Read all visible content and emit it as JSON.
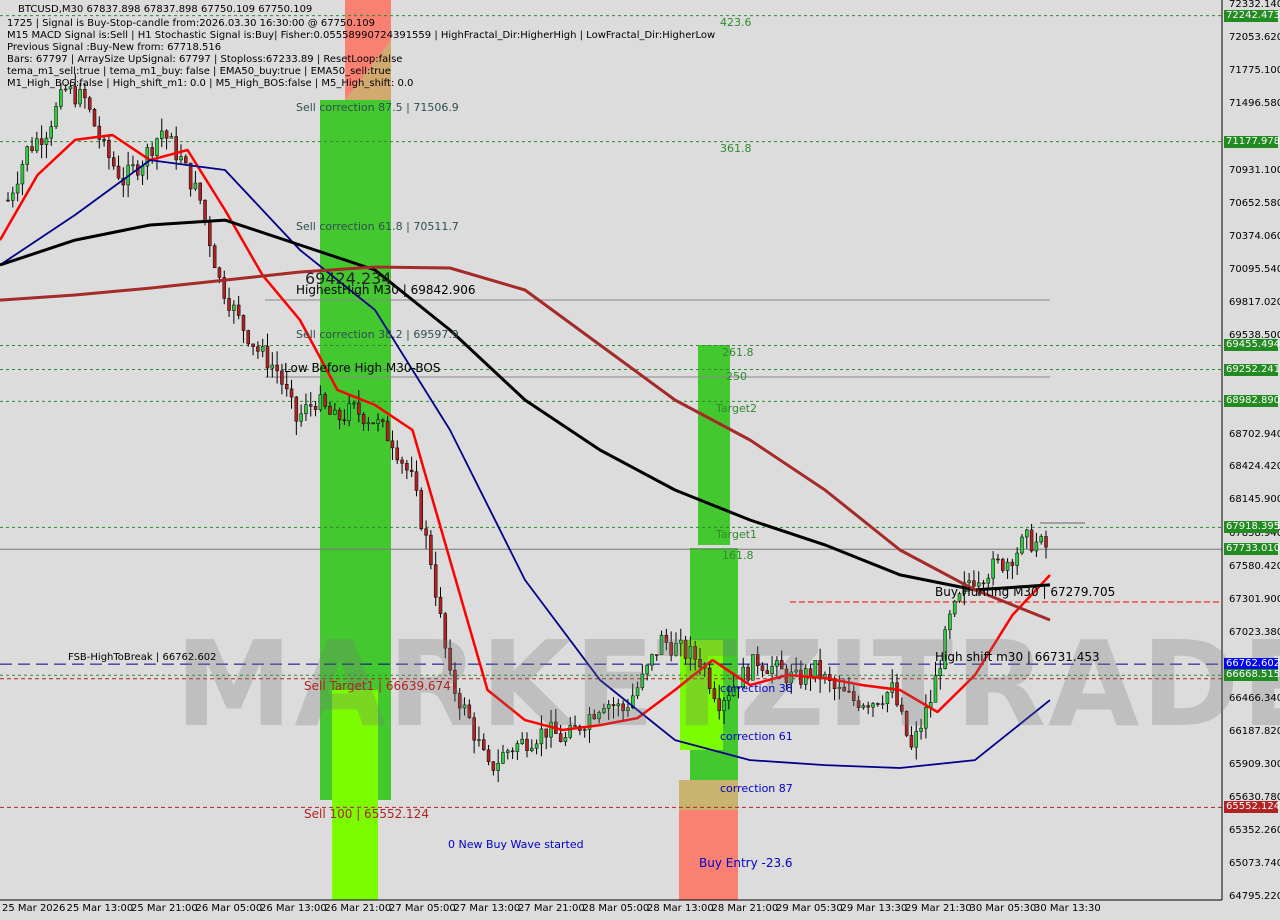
{
  "header": {
    "symbol_line": "BTCUSD,M30  67837.898 67837.898 67750.109 67750.109",
    "info_lines": [
      "1725 | Signal is Buy-Stop-candle from:2026.03.30 16:30:00 @ 67750.109",
      "M15 MACD Signal is:Sell | H1 Stochastic Signal is:Buy| Fisher:0.05558990724391559 | HighFractal_Dir:HigherHigh | LowFractal_Dir:HigherLow",
      "Previous Signal :Buy-New from: 67718.516",
      "Bars: 67797 | ArraySize UpSignal: 67797 | Stoploss:67233.89 | ResetLoop:false",
      "tema_m1_sell:true | tema_m1_buy: false | EMA50_buy:true | EMA50_sell:true",
      "M1_High_BOS:false | High_shift_m1: 0.0 | M5_High_BOS:false | M5_High_shift: 0.0"
    ]
  },
  "watermark": "MARKETZITRADE",
  "labels": {
    "l423": "423.6",
    "l361": "361.8",
    "sell875": "Sell correction 87.5 | 71506.9",
    "sell618": "Sell correction 61.8 | 70511.7",
    "price694": "69424.234",
    "highest": "HighestHigh   M30 | 69842.906",
    "sell382": "Sell correction 38.2 | 69597.9",
    "lowbefore": "Low Before High   M30-BOS",
    "l2618": "261.8",
    "l250": "250",
    "target2": "Target2",
    "target1": "Target1",
    "l1618": "161.8",
    "buyhunt": "Buy Hunting M30 | 67279.705",
    "fsb": "FSB-HighToBreak | 66762.602",
    "highshift": "High shift m30 | 66731.453",
    "selltarget1": "Sell Target1 | 66639.674",
    "corr38": "correction 38",
    "corr61": "correction 61",
    "corr87": "correction 87",
    "sell100": "Sell 100 | 65552.124",
    "newbuy": "0 New Buy Wave started",
    "buyentry": "Buy Entry -23.6"
  },
  "colors": {
    "bg": "#dcdcdc",
    "bull": "#2ecc40",
    "bear": "#b22222",
    "ema_fast": "#ff0000",
    "ema_blue": "#00008b",
    "ema_black": "#000000",
    "ema_brown": "#a52a2a",
    "tag_green": "#228b22",
    "tag_red": "#b22222",
    "tag_blue": "#0000ff"
  },
  "chart_data": {
    "type": "candlestick",
    "symbol": "BTCUSD",
    "timeframe": "M30",
    "ylim": [
      64795.22,
      72332.14
    ],
    "y_ticks": [
      "72332.140",
      "72053.620",
      "71775.100",
      "71496.580",
      "70931.100",
      "70652.580",
      "70374.060",
      "70095.540",
      "69817.020",
      "69538.500",
      "68702.940",
      "68424.420",
      "68145.900",
      "67858.940",
      "67580.420",
      "67301.900",
      "67023.380",
      "66466.340",
      "66187.820",
      "65909.300",
      "65630.780",
      "65352.260",
      "65073.740",
      "64795.220"
    ],
    "price_tags": [
      {
        "value": "72242.473",
        "color": "green"
      },
      {
        "value": "71177.978",
        "color": "green"
      },
      {
        "value": "69455.494",
        "color": "green"
      },
      {
        "value": "69252.241",
        "color": "green"
      },
      {
        "value": "68982.890",
        "color": "green"
      },
      {
        "value": "67918.395",
        "color": "green"
      },
      {
        "value": "67733.010",
        "color": "green"
      },
      {
        "value": "66762.602",
        "color": "blue"
      },
      {
        "value": "66668.515",
        "color": "green"
      },
      {
        "value": "65552.124",
        "color": "red"
      }
    ],
    "x_ticks": [
      "25 Mar 2026",
      "25 Mar 13:00",
      "25 Mar 21:00",
      "26 Mar 05:00",
      "26 Mar 13:00",
      "26 Mar 21:00",
      "27 Mar 05:00",
      "27 Mar 13:00",
      "27 Mar 21:00",
      "28 Mar 05:00",
      "28 Mar 13:00",
      "28 Mar 21:00",
      "29 Mar 05:30",
      "29 Mar 13:30",
      "29 Mar 21:30",
      "30 Mar 05:30",
      "30 Mar 13:30"
    ],
    "closes": [
      70684,
      71107,
      71276,
      71614,
      71529,
      71107,
      70853,
      71022,
      71276,
      71022,
      70684,
      70008,
      69670,
      69417,
      69248,
      68826,
      68994,
      68826,
      68910,
      68826,
      68657,
      68319,
      67643,
      66629,
      66290,
      65868,
      66037,
      66121,
      66206,
      66121,
      66290,
      66459,
      66375,
      66629,
      66967,
      66882,
      66798,
      66459,
      66629,
      66798,
      66713,
      66629,
      66713,
      66544,
      66459,
      66459,
      66544,
      66037,
      66459,
      67135,
      67473,
      67558,
      67643,
      67812,
      67750
    ],
    "ma_lines": [
      {
        "color": "#ff0000",
        "values": [
          70346,
          70896,
          71192,
          71234,
          71022,
          71107,
          70600,
          70050,
          69670,
          69079,
          68952,
          68741,
          67643,
          66544,
          66290,
          66206,
          66248,
          66307,
          66544,
          66797,
          66586,
          66671,
          66645,
          66586,
          66544,
          66358,
          66671,
          67178,
          67516
        ]
      },
      {
        "color": "#00008b",
        "values": [
          70135,
          70558,
          71022,
          70938,
          70262,
          69755,
          68741,
          67474,
          66629,
          66121,
          65952,
          65910,
          65885,
          65952,
          66459
        ]
      },
      {
        "color": "#000000",
        "values": [
          70135,
          70346,
          70473,
          70515,
          70304,
          70093,
          69586,
          68995,
          68572,
          68234,
          67981,
          67770,
          67517,
          67390,
          67432
        ]
      },
      {
        "color": "#a52a2a",
        "values": [
          69839,
          69882,
          69940,
          70008,
          70076,
          70118,
          70110,
          69924,
          69459,
          68995,
          68657,
          68234,
          67727,
          67390,
          67136
        ]
      }
    ],
    "levels": [
      {
        "value": 72242.473,
        "style": "green-dash"
      },
      {
        "value": 71177.978,
        "style": "green-dash"
      },
      {
        "value": 69455.494,
        "style": "green-dash"
      },
      {
        "value": 69252.241,
        "style": "green-dash"
      },
      {
        "value": 68982.89,
        "style": "green-dash"
      },
      {
        "value": 67918.395,
        "style": "green-dash"
      },
      {
        "value": 67733.01,
        "style": "gray-solid"
      },
      {
        "value": 66762.602,
        "style": "blue-longdash"
      },
      {
        "value": 66668.515,
        "style": "green-dash"
      },
      {
        "value": 66639.674,
        "style": "red-dash"
      },
      {
        "value": 65552.124,
        "style": "red-dash"
      }
    ]
  }
}
